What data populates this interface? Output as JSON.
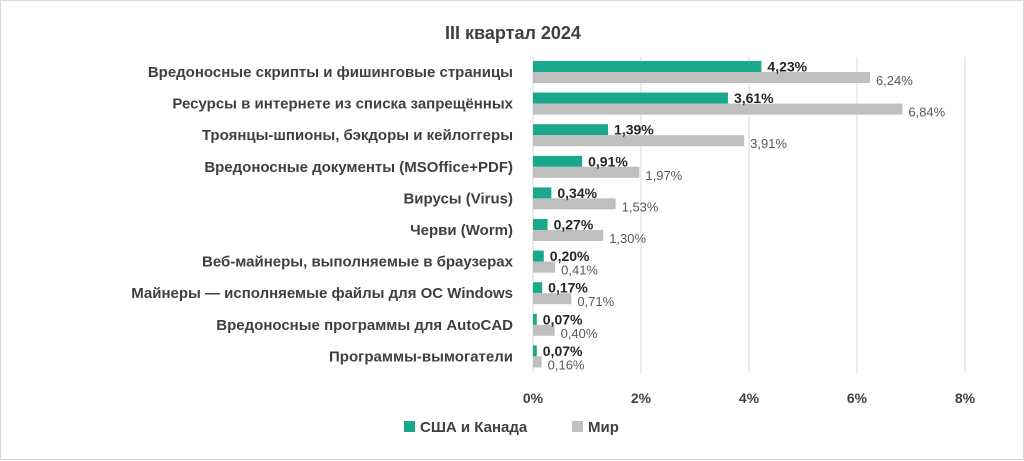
{
  "chart_data": {
    "type": "bar",
    "orientation": "horizontal",
    "title": "III квартал 2024",
    "categories": [
      "Вредоносные скрипты и фишинговые страницы",
      "Ресурсы в интернете из списка запрещённых",
      "Троянцы-шпионы, бэкдоры и кейлоггеры",
      "Вредоносные документы (MSOffice+PDF)",
      "Вирусы (Virus)",
      "Черви (Worm)",
      "Веб-майнеры, выполняемые в браузерах",
      "Майнеры — исполняемые файлы для ОС Windows",
      "Вредоносные программы для AutoCAD",
      "Программы-вымогатели"
    ],
    "series": [
      {
        "name": "США и Канада",
        "color": "#1aa88c",
        "values": [
          4.23,
          3.61,
          1.39,
          0.91,
          0.34,
          0.27,
          0.2,
          0.17,
          0.07,
          0.07
        ],
        "labels": [
          "4,23%",
          "3,61%",
          "1,39%",
          "0,91%",
          "0,34%",
          "0,27%",
          "0,20%",
          "0,17%",
          "0,07%",
          "0,07%"
        ]
      },
      {
        "name": "Мир",
        "color": "#bfbfbf",
        "values": [
          6.24,
          6.84,
          3.91,
          1.97,
          1.53,
          1.3,
          0.41,
          0.71,
          0.4,
          0.16
        ],
        "labels": [
          "6,24%",
          "6,84%",
          "3,91%",
          "1,97%",
          "1,53%",
          "1,30%",
          "0,41%",
          "0,71%",
          "0,40%",
          "0,16%"
        ]
      }
    ],
    "xlim": [
      0,
      8
    ],
    "xticks": [
      0,
      2,
      4,
      6,
      8
    ],
    "xtick_labels": [
      "0%",
      "2%",
      "4%",
      "6%",
      "8%"
    ],
    "grid": "vertical",
    "legend": "bottom"
  }
}
